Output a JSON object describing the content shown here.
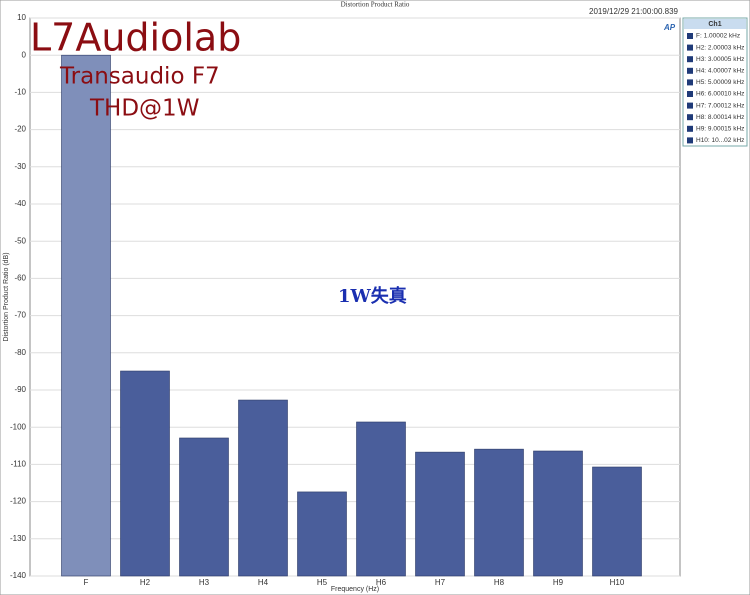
{
  "chart_data": {
    "type": "bar",
    "title": "Distortion Product Ratio",
    "timestamp": "2019/12/29 21:00:00.839",
    "watermark": [
      "L7Audiolab",
      "Transaudio F7",
      "THD@1W"
    ],
    "annotation": "1W失真",
    "logo": "AP",
    "ylabel": "Distortion Product Ratio (dB)",
    "xlabel": "Frequency (Hz)",
    "categories": [
      "F",
      "H2",
      "H3",
      "H4",
      "H5",
      "H6",
      "H7",
      "H8",
      "H9",
      "H10"
    ],
    "values": [
      0,
      -84.9,
      -102.9,
      -92.7,
      -117.4,
      -98.6,
      -106.7,
      -105.9,
      -106.4,
      -110.7
    ],
    "colors": [
      "#7f8fba",
      "#4a5e9b",
      "#4a5e9b",
      "#4a5e9b",
      "#4a5e9b",
      "#4a5e9b",
      "#4a5e9b",
      "#4a5e9b",
      "#4a5e9b",
      "#4a5e9b"
    ],
    "ylim": [
      -140,
      10
    ],
    "yticks": [
      10,
      0,
      -10,
      -20,
      -30,
      -40,
      -50,
      -60,
      -70,
      -80,
      -90,
      -100,
      -110,
      -120,
      -130,
      -140
    ],
    "grid": true,
    "legend_title": "Ch1",
    "legend_color": "#1f3a78",
    "legend_entries": [
      "F: 1.00002 kHz",
      "H2: 2.00003 kHz",
      "H3: 3.00005 kHz",
      "H4: 4.00007 kHz",
      "H5: 5.00009 kHz",
      "H6: 6.00010 kHz",
      "H7: 7.00012 kHz",
      "H8: 8.00014 kHz",
      "H9: 9.00015 kHz",
      "H10: 10...02 kHz"
    ]
  }
}
